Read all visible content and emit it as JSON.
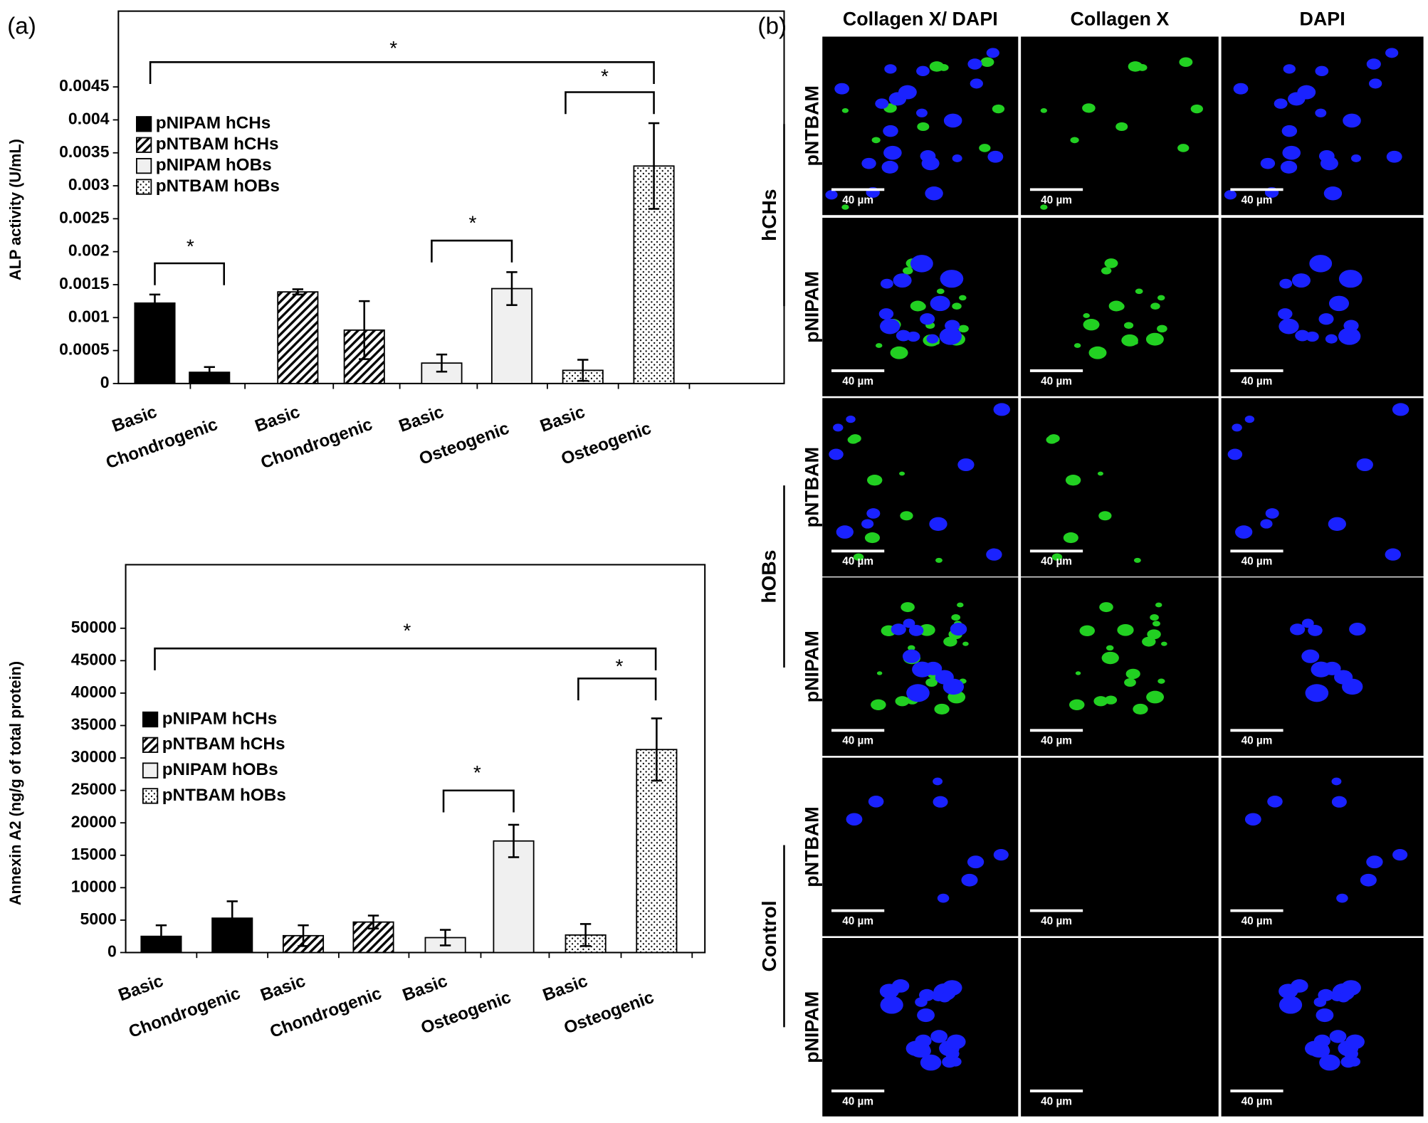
{
  "panel_labels": [
    "(a)",
    "(b)"
  ],
  "chart_data": [
    {
      "type": "bar",
      "y_label": "ALP activity  (U/mL)",
      "categories": [
        "Basic",
        "Chondrogenic",
        "Basic",
        "Chondrogenic",
        "Basic",
        "Osteogenic",
        "Basic",
        "Osteogenic"
      ],
      "series": [
        {
          "name": "pNIPAM hCHs",
          "color": "#000000",
          "pattern": "solid",
          "values": [
            0.00122,
            0.00017,
            null,
            null,
            null,
            null,
            null,
            null
          ],
          "errors": [
            0.00013,
            8e-05,
            null,
            null,
            null,
            null,
            null,
            null
          ]
        },
        {
          "name": "pNTBAM hCHs",
          "color": "#ffffff",
          "pattern": "hatch",
          "values": [
            null,
            null,
            0.00139,
            0.00081,
            null,
            null,
            null,
            null
          ],
          "errors": [
            null,
            null,
            4e-05,
            0.00044,
            null,
            null,
            null,
            null
          ]
        },
        {
          "name": "pNIPAM hOBs",
          "color": "#f0f0f0",
          "pattern": "solid",
          "values": [
            null,
            null,
            null,
            null,
            0.00031,
            0.00144,
            null,
            null
          ],
          "errors": [
            null,
            null,
            null,
            null,
            0.00013,
            0.00025,
            null,
            null
          ]
        },
        {
          "name": "pNTBAM hOBs",
          "color": "#ffffff",
          "pattern": "dots",
          "values": [
            null,
            null,
            null,
            null,
            null,
            null,
            0.0002,
            0.0033
          ],
          "errors": [
            null,
            null,
            null,
            null,
            null,
            null,
            0.00016,
            0.00065
          ]
        }
      ],
      "ylim": [
        0,
        0.00565
      ],
      "yticks": [
        0,
        0.0005,
        0.001,
        0.0015,
        0.002,
        0.0025,
        0.003,
        0.0035,
        0.004,
        0.0045
      ],
      "annotations": [
        "*",
        "*",
        "*",
        "*"
      ]
    },
    {
      "type": "bar",
      "y_label": "Annexin A2 (ng/g of total protein)",
      "categories": [
        "Basic",
        "Chondrogenic",
        "Basic",
        "Chondrogenic",
        "Basic",
        "Osteogenic",
        "Basic",
        "Osteogenic"
      ],
      "series": [
        {
          "name": "pNIPAM hCHs",
          "color": "#000000",
          "pattern": "solid",
          "values": [
            2500,
            5300,
            null,
            null,
            null,
            null,
            null,
            null
          ],
          "errors": [
            1700,
            2600,
            null,
            null,
            null,
            null,
            null,
            null
          ]
        },
        {
          "name": "pNTBAM hCHs",
          "color": "#ffffff",
          "pattern": "hatch",
          "values": [
            null,
            null,
            2600,
            4700,
            null,
            null,
            null,
            null
          ],
          "errors": [
            null,
            null,
            1600,
            1000,
            null,
            null,
            null,
            null
          ]
        },
        {
          "name": "pNIPAM hOBs",
          "color": "#f0f0f0",
          "pattern": "solid",
          "values": [
            null,
            null,
            null,
            null,
            2300,
            17200,
            null,
            null
          ],
          "errors": [
            null,
            null,
            null,
            null,
            1200,
            2500,
            null,
            null
          ]
        },
        {
          "name": "pNTBAM hOBs",
          "color": "#ffffff",
          "pattern": "dots",
          "values": [
            null,
            null,
            null,
            null,
            null,
            null,
            2700,
            31300
          ],
          "errors": [
            null,
            null,
            null,
            null,
            null,
            null,
            1700,
            4800
          ]
        }
      ],
      "ylim": [
        0,
        59800
      ],
      "yticks": [
        0,
        5000,
        10000,
        15000,
        20000,
        25000,
        30000,
        35000,
        40000,
        45000,
        50000
      ],
      "annotations": [
        "*",
        "*",
        "*"
      ]
    }
  ],
  "micrographs": {
    "columns": [
      "Collagen X/ DAPI",
      "Collagen X",
      "DAPI"
    ],
    "groups": [
      {
        "label": "hCHs",
        "rows": [
          "pNTBAM",
          "pNIPAM"
        ]
      },
      {
        "label": "hOBs",
        "rows": [
          "pNTBAM",
          "pNIPAM"
        ]
      },
      {
        "label": "Control",
        "rows": [
          "pNTBAM",
          "pNIPAM"
        ]
      }
    ],
    "scale_bar": "40 µm"
  }
}
